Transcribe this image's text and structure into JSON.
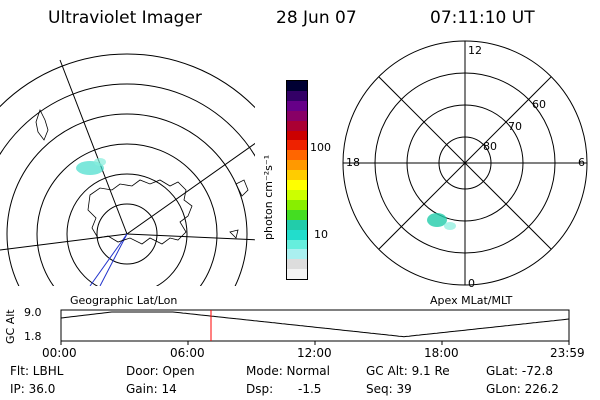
{
  "header": {
    "instrument": "Ultraviolet Imager",
    "date": "28 Jun 07",
    "time": "07:11:10 UT"
  },
  "colorbar": {
    "unit_label": "photon cm⁻²s⁻¹",
    "ticks": [
      "100",
      "10"
    ],
    "colors": [
      "#000033",
      "#330066",
      "#660088",
      "#880066",
      "#aa0033",
      "#cc0000",
      "#ee2200",
      "#ff6600",
      "#ff9900",
      "#ffcc00",
      "#ffff00",
      "#ccff00",
      "#88ee00",
      "#44dd22",
      "#22ccaa",
      "#22ddcc",
      "#66eedd",
      "#aaf0f0",
      "#dddddd",
      "#f4f4f4"
    ]
  },
  "left_map": {
    "caption": "Geographic Lat/Lon"
  },
  "right_map": {
    "caption": "Apex MLat/MLT",
    "mlt_labels": {
      "top": "12",
      "left": "18",
      "right": "6",
      "bottom": "0"
    },
    "lat_labels": [
      "80",
      "70",
      "60"
    ]
  },
  "altitude_plot": {
    "ylabel": "GC Alt",
    "y_ticks": [
      "9.0",
      "1.8"
    ],
    "x_ticks": [
      "00:00",
      "06:00",
      "12:00",
      "18:00",
      "23:59"
    ],
    "marker_color": "#ff0000"
  },
  "status": {
    "filter": "Flt: LBHL",
    "ip": "IP: 36.0",
    "door": "Door: Open",
    "gain": "Gain: 14",
    "mode": "Mode: Normal",
    "dsp": "Dsp:",
    "dsp_value": "-1.5",
    "gc_alt": "GC Alt: 9.1 Re",
    "seq": "Seq: 39",
    "glat": "GLat: -72.8",
    "glon": "GLon: 226.2"
  }
}
